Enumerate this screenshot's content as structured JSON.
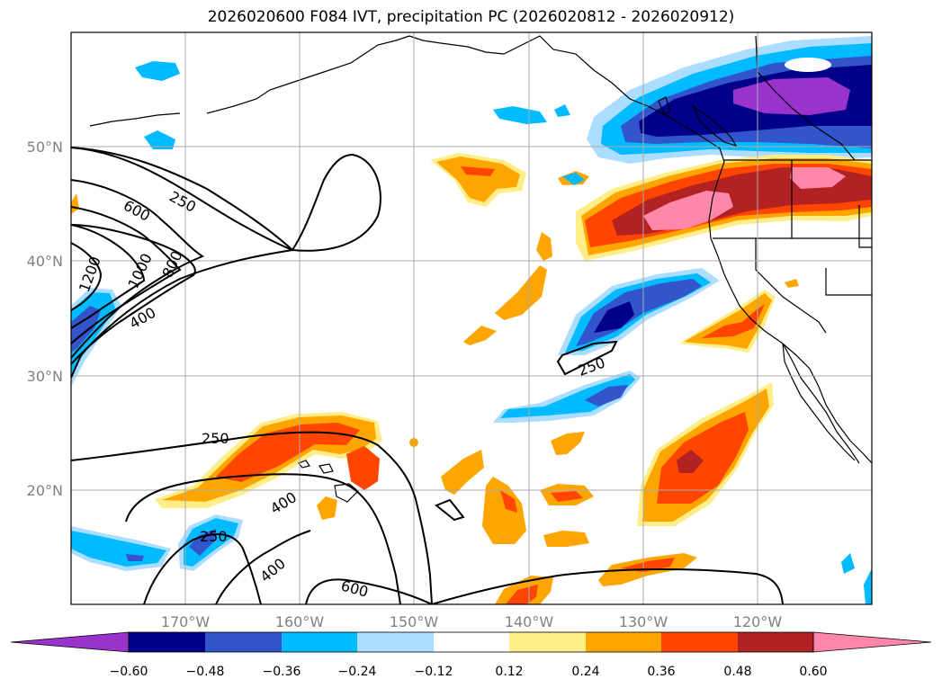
{
  "title": "2026020600 F084 IVT, precipitation PC (2026020812 - 2026020912)",
  "map": {
    "lon_range": [
      -180,
      -110
    ],
    "lat_range": [
      10,
      60
    ],
    "lon_ticks": [
      {
        "value": -170,
        "label": "170°W"
      },
      {
        "value": -160,
        "label": "160°W"
      },
      {
        "value": -150,
        "label": "150°W"
      },
      {
        "value": -140,
        "label": "140°W"
      },
      {
        "value": -130,
        "label": "130°W"
      },
      {
        "value": -120,
        "label": "120°W"
      }
    ],
    "lat_ticks": [
      {
        "value": 50,
        "label": "50°N"
      },
      {
        "value": 40,
        "label": "40°N"
      },
      {
        "value": 30,
        "label": "30°N"
      },
      {
        "value": 20,
        "label": "20°N"
      }
    ],
    "grid": true,
    "contour_labels": [
      "250",
      "600",
      "1200",
      "1000",
      "800",
      "400",
      "250",
      "250",
      "400",
      "250",
      "400",
      "600"
    ]
  },
  "colorbar": {
    "ticks": [
      "−0.60",
      "−0.48",
      "−0.36",
      "−0.24",
      "−0.12",
      "0.12",
      "0.24",
      "0.36",
      "0.48",
      "0.60"
    ],
    "colors": [
      "#9933cc",
      "#000088",
      "#3355cc",
      "#00bbff",
      "#aaddff",
      "#ffffff",
      "#ffee88",
      "#ffa500",
      "#ff4500",
      "#b22222",
      "#ff88aa"
    ],
    "extend": "both"
  },
  "colors": {
    "purple": "#9933cc",
    "navy": "#000088",
    "blue": "#3355cc",
    "cyan": "#00bbff",
    "lightblue": "#aaddff",
    "lightyellow": "#ffee88",
    "orange": "#ffa500",
    "redorange": "#ff4500",
    "darkred": "#b22222",
    "pink": "#ff88aa"
  }
}
